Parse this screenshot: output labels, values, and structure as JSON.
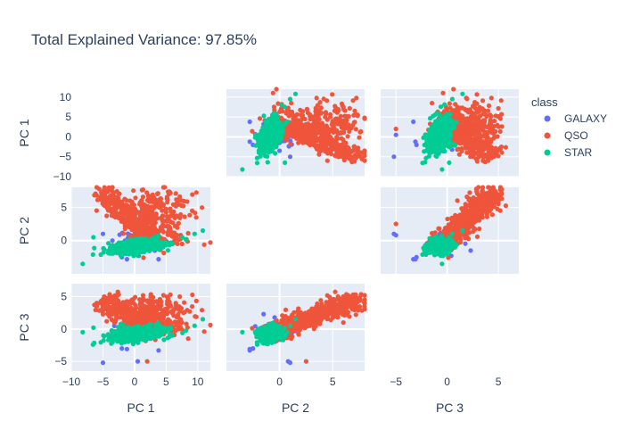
{
  "chart_data": {
    "type": "scatter",
    "title": "Total Explained Variance: 97.85%",
    "dimensions": [
      "PC 1",
      "PC 2",
      "PC 3"
    ],
    "axis_ranges": {
      "PC 1": [
        -10,
        12
      ],
      "PC 2": [
        -5,
        8
      ],
      "PC 3": [
        -6.5,
        7
      ]
    },
    "tick_values": {
      "PC 1": [
        -10,
        -5,
        0,
        5,
        10
      ],
      "PC 2": [
        0,
        5
      ],
      "PC 3": [
        -5,
        0,
        5
      ]
    },
    "diagonal_visible": false,
    "upper_triangle_visible": true,
    "legend": {
      "title": "class",
      "placement": "right",
      "items": [
        "GALAXY",
        "QSO",
        "STAR"
      ]
    },
    "series": [
      {
        "name": "GALAXY",
        "color": "#636efa",
        "cluster_center": [
          0.0,
          0.0,
          0.0
        ],
        "outliers": [
          [
            -1.2,
            -2.8,
            -3.1
          ],
          [
            3.2,
            -1.5,
            2.3
          ],
          [
            0.5,
            0.8,
            -5.0
          ],
          [
            -3.5,
            0.0,
            -0.5
          ],
          [
            -2.0,
            -2.5,
            -3.0
          ],
          [
            -5.0,
            1.0,
            -5.2
          ],
          [
            3.8,
            -2.8,
            -3.3
          ]
        ]
      },
      {
        "name": "QSO",
        "color": "#ef553b",
        "cluster_center": [
          -2.0,
          3.0,
          2.5
        ],
        "outliers": [
          [
            7.5,
            6.0,
            1.0
          ],
          [
            -4.8,
            5.5,
            5.0
          ],
          [
            -6.0,
            4.5,
            3.5
          ],
          [
            2.0,
            2.5,
            -5.0
          ],
          [
            -2.5,
            7.0,
            5.3
          ],
          [
            3.0,
            3.5,
            2.0
          ]
        ]
      },
      {
        "name": "STAR",
        "color": "#00cc96",
        "cluster_center": [
          0.5,
          -0.8,
          -0.7
        ],
        "outliers": [
          [
            -8.2,
            -3.5,
            -0.5
          ],
          [
            10.8,
            1.5,
            1.5
          ],
          [
            9.5,
            1.0,
            0.5
          ],
          [
            -6.5,
            0.5,
            0.2
          ]
        ]
      }
    ]
  }
}
